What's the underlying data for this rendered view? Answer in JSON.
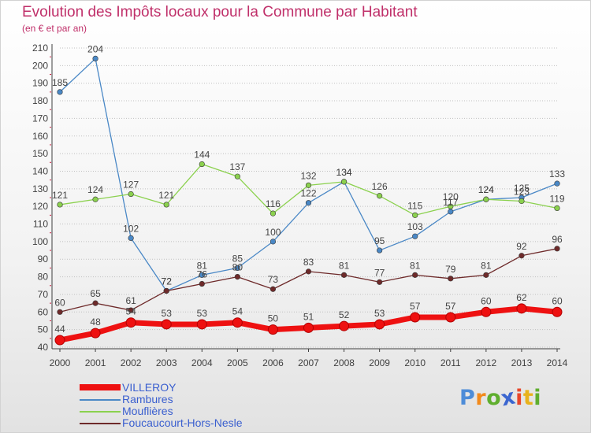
{
  "title": "Evolution des Impôts locaux pour la Commune par Habitant",
  "subtitle": "(en € et par an)",
  "logo": {
    "letters": [
      "P",
      "r",
      "o",
      "x",
      "i",
      "t",
      "i"
    ],
    "colors": [
      "#4d8cd8",
      "#f28a1c",
      "#5fae2e",
      "#3b66d0",
      "#e8462a",
      "#e8b21c",
      "#5fae2e"
    ]
  },
  "colors": {
    "title": "#c0306a",
    "axis": "#404040",
    "grid": "#c0c0c0",
    "tick_marks": "#cc2244",
    "label_text": "#444444"
  },
  "chart_data": {
    "type": "line",
    "title": "Evolution des Impôts locaux pour la Commune par Habitant",
    "ylabel": "(en € et par an)",
    "xlabel": "",
    "x": [
      "2000",
      "2001",
      "2002",
      "2003",
      "2004",
      "2005",
      "2006",
      "2007",
      "2008",
      "2009",
      "2010",
      "2011",
      "2012",
      "2013",
      "2014"
    ],
    "ylim": [
      40,
      210
    ],
    "yticks": [
      40,
      50,
      60,
      70,
      80,
      90,
      100,
      110,
      120,
      130,
      140,
      150,
      160,
      170,
      180,
      190,
      200,
      210
    ],
    "grid": "horizontal",
    "legend_position": "bottom-left",
    "series": [
      {
        "name": "Rambures",
        "color": "#4a88c6",
        "values": [
          185,
          204,
          102,
          72,
          81,
          85,
          100,
          122,
          134,
          95,
          103,
          117,
          124,
          125,
          133
        ],
        "labels": [
          "185",
          "204",
          "102",
          "72",
          "81",
          "85",
          "100",
          "122",
          "134",
          "95",
          "103",
          "117",
          "124",
          "125",
          "133"
        ]
      },
      {
        "name": "Mouflières",
        "color": "#8bd14e",
        "values": [
          121,
          124,
          127,
          121,
          144,
          137,
          116,
          132,
          134,
          126,
          115,
          120,
          124,
          123,
          119
        ],
        "labels": [
          "121",
          "124",
          "127",
          "121",
          "144",
          "137",
          "116",
          "132",
          "134",
          "126",
          "115",
          "120",
          "124",
          "123",
          "119"
        ]
      },
      {
        "name": "Foucaucourt-Hors-Nesle",
        "color": "#6e2a2a",
        "values": [
          60,
          65,
          61,
          72,
          76,
          80,
          73,
          83,
          81,
          77,
          81,
          79,
          81,
          92,
          96
        ],
        "labels": [
          "60",
          "65",
          "61",
          "72",
          "76",
          "80",
          "73",
          "83",
          "81",
          "77",
          "81",
          "79",
          "81",
          "92",
          "96"
        ]
      },
      {
        "name": "VILLEROY",
        "color": "#ee1111",
        "values": [
          44,
          48,
          54,
          53,
          53,
          54,
          50,
          51,
          52,
          53,
          57,
          57,
          60,
          62,
          60
        ],
        "labels": [
          "44",
          "48",
          "54",
          "53",
          "53",
          "54",
          "50",
          "51",
          "52",
          "53",
          "57",
          "57",
          "60",
          "62",
          "60"
        ]
      }
    ]
  },
  "legend": [
    {
      "name": "VILLEROY",
      "color": "#ee1111"
    },
    {
      "name": "Rambures",
      "color": "#4a88c6"
    },
    {
      "name": "Mouflières",
      "color": "#8bd14e"
    },
    {
      "name": "Foucaucourt-Hors-Nesle",
      "color": "#6e2a2a"
    }
  ]
}
